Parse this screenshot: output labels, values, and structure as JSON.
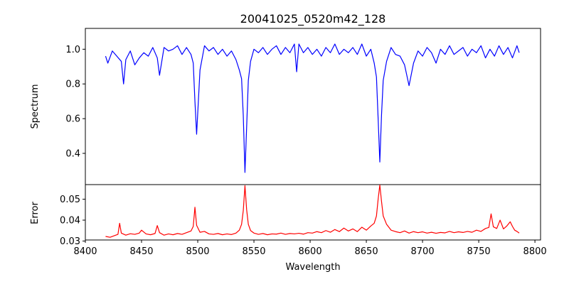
{
  "chart_data": [
    {
      "type": "line",
      "title": "20041025_0520m42_128",
      "xlabel": "",
      "ylabel": "Spectrum",
      "xlim": [
        8400,
        8805
      ],
      "ylim": [
        0.22,
        1.12
      ],
      "yticks": [
        1.0,
        0.8,
        0.6,
        0.4
      ],
      "ytick_labels": [
        "1.0",
        "0.8",
        "0.6",
        "0.4"
      ],
      "grid": false,
      "series": [
        {
          "color": "#0000ff",
          "x": [
            8418,
            8420,
            8424,
            8428,
            8432,
            8434,
            8436,
            8440,
            8444,
            8448,
            8452,
            8456,
            8460,
            8464,
            8466,
            8470,
            8474,
            8478,
            8482,
            8486,
            8490,
            8494,
            8496,
            8497.5,
            8499,
            8502,
            8506,
            8510,
            8514,
            8518,
            8522,
            8526,
            8530,
            8534,
            8537,
            8539,
            8540.5,
            8542,
            8543.5,
            8545,
            8547,
            8550,
            8554,
            8558,
            8562,
            8566,
            8570,
            8574,
            8578,
            8582,
            8586,
            8588,
            8590,
            8594,
            8598,
            8602,
            8606,
            8610,
            8614,
            8618,
            8622,
            8626,
            8630,
            8634,
            8638,
            8642,
            8646,
            8650,
            8654,
            8657,
            8659,
            8660.5,
            8662,
            8663.5,
            8665,
            8668,
            8672,
            8676,
            8680,
            8684,
            8688,
            8692,
            8696,
            8700,
            8704,
            8708,
            8712,
            8716,
            8720,
            8724,
            8728,
            8732,
            8736,
            8740,
            8744,
            8748,
            8752,
            8756,
            8760,
            8764,
            8768,
            8772,
            8776,
            8780,
            8784,
            8786
          ],
          "y": [
            0.96,
            0.92,
            0.99,
            0.96,
            0.93,
            0.8,
            0.94,
            0.99,
            0.91,
            0.95,
            0.98,
            0.96,
            1.01,
            0.95,
            0.85,
            1.01,
            0.99,
            1.0,
            1.02,
            0.97,
            1.01,
            0.97,
            0.92,
            0.7,
            0.51,
            0.88,
            1.02,
            0.99,
            1.01,
            0.97,
            1.0,
            0.96,
            0.99,
            0.94,
            0.88,
            0.83,
            0.62,
            0.29,
            0.55,
            0.82,
            0.93,
            1.0,
            0.98,
            1.01,
            0.97,
            1.0,
            1.02,
            0.97,
            1.01,
            0.98,
            1.03,
            0.87,
            1.03,
            0.98,
            1.01,
            0.97,
            1.0,
            0.96,
            1.01,
            0.98,
            1.03,
            0.97,
            1.0,
            0.98,
            1.01,
            0.97,
            1.03,
            0.96,
            1.0,
            0.92,
            0.84,
            0.6,
            0.35,
            0.62,
            0.82,
            0.93,
            1.01,
            0.97,
            0.96,
            0.91,
            0.79,
            0.92,
            0.99,
            0.96,
            1.01,
            0.98,
            0.92,
            1.0,
            0.97,
            1.02,
            0.97,
            0.99,
            1.01,
            0.96,
            1.0,
            0.98,
            1.02,
            0.95,
            1.0,
            0.96,
            1.02,
            0.97,
            1.01,
            0.95,
            1.02,
            0.98
          ]
        }
      ]
    },
    {
      "type": "line",
      "title": "",
      "xlabel": "Wavelength",
      "ylabel": "Error",
      "xlim": [
        8400,
        8805
      ],
      "ylim": [
        0.0305,
        0.057
      ],
      "xticks": [
        8400,
        8450,
        8500,
        8550,
        8600,
        8650,
        8700,
        8750,
        8800
      ],
      "xtick_labels": [
        "8400",
        "8450",
        "8500",
        "8550",
        "8600",
        "8650",
        "8700",
        "8750",
        "8800"
      ],
      "yticks": [
        0.05,
        0.04,
        0.03
      ],
      "ytick_labels": [
        "0.05",
        "0.04",
        "0.03"
      ],
      "grid": false,
      "series": [
        {
          "color": "#ff0000",
          "x": [
            8418,
            8422,
            8426,
            8429,
            8430.5,
            8432,
            8436,
            8440,
            8444,
            8448,
            8450,
            8454,
            8458,
            8462,
            8464,
            8466,
            8470,
            8474,
            8478,
            8482,
            8486,
            8490,
            8494,
            8496,
            8497.5,
            8499,
            8502,
            8506,
            8510,
            8514,
            8518,
            8522,
            8526,
            8530,
            8534,
            8537,
            8539,
            8540.5,
            8542,
            8543.5,
            8545,
            8547,
            8550,
            8554,
            8558,
            8562,
            8566,
            8570,
            8574,
            8578,
            8582,
            8586,
            8590,
            8594,
            8598,
            8602,
            8606,
            8610,
            8614,
            8618,
            8622,
            8626,
            8630,
            8634,
            8638,
            8642,
            8646,
            8650,
            8654,
            8657,
            8659,
            8660.5,
            8662,
            8663.5,
            8665,
            8668,
            8672,
            8676,
            8680,
            8684,
            8688,
            8692,
            8696,
            8700,
            8704,
            8708,
            8712,
            8716,
            8720,
            8724,
            8728,
            8732,
            8736,
            8740,
            8744,
            8748,
            8752,
            8756,
            8759,
            8761,
            8763,
            8766,
            8769,
            8772,
            8775,
            8778,
            8780,
            8782,
            8784,
            8786
          ],
          "y": [
            0.0322,
            0.0318,
            0.0326,
            0.0332,
            0.0385,
            0.0338,
            0.0328,
            0.0335,
            0.0332,
            0.0338,
            0.0352,
            0.0334,
            0.033,
            0.0336,
            0.0374,
            0.034,
            0.0328,
            0.0334,
            0.033,
            0.0336,
            0.0332,
            0.034,
            0.0348,
            0.037,
            0.0462,
            0.0375,
            0.0342,
            0.0346,
            0.0334,
            0.0332,
            0.0336,
            0.033,
            0.0334,
            0.0331,
            0.0338,
            0.0352,
            0.038,
            0.0445,
            0.0565,
            0.045,
            0.038,
            0.035,
            0.0338,
            0.0332,
            0.0336,
            0.033,
            0.0334,
            0.0333,
            0.0338,
            0.0332,
            0.0336,
            0.0334,
            0.0337,
            0.0333,
            0.034,
            0.0338,
            0.0345,
            0.034,
            0.035,
            0.0342,
            0.0355,
            0.0345,
            0.0362,
            0.0348,
            0.0358,
            0.0345,
            0.0366,
            0.0352,
            0.0372,
            0.0385,
            0.042,
            0.05,
            0.0568,
            0.049,
            0.042,
            0.038,
            0.0352,
            0.0345,
            0.034,
            0.0348,
            0.0338,
            0.0345,
            0.034,
            0.0344,
            0.0338,
            0.0342,
            0.0337,
            0.0341,
            0.0339,
            0.0346,
            0.034,
            0.0344,
            0.0341,
            0.0346,
            0.0342,
            0.0352,
            0.0346,
            0.036,
            0.0365,
            0.043,
            0.0368,
            0.036,
            0.04,
            0.0358,
            0.0372,
            0.0392,
            0.037,
            0.0352,
            0.0346,
            0.0338
          ]
        }
      ]
    }
  ]
}
